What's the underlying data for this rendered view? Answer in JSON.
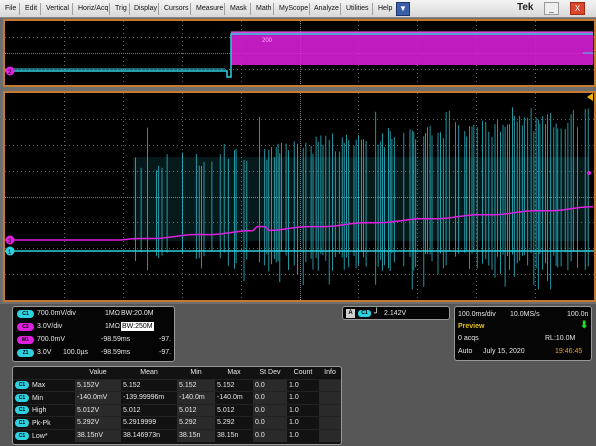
{
  "menu": {
    "items": [
      "File",
      "Edit",
      "Vertical",
      "Horiz/Acq",
      "Trig",
      "Display",
      "Cursors",
      "Measure",
      "Mask",
      "Math",
      "MyScope",
      "Analyze",
      "Utilities",
      "Help"
    ],
    "brand": "Tek",
    "window_buttons": {
      "minimize": "_",
      "close": "X"
    }
  },
  "icons": {
    "dropdown": "chevron-down-icon",
    "trigger_slope": "rising-edge-icon",
    "arrow": "down-arrow-icon"
  },
  "colors": {
    "ch1": "#2fd0e0",
    "ch3": "#e020e0",
    "math1": "#e020e0",
    "ch4": "#2fd0e0",
    "trigger": "#f4b400",
    "grid": "#7a7a7a",
    "preview": "#e0c020",
    "time": "#f0a030",
    "acq_arrow": "#20e020"
  },
  "channels": [
    {
      "badge": "C1",
      "color": "#2fd0e0",
      "scale": "700.0mV/div",
      "impedance": "1MΩ",
      "bw": "BW:20.0M",
      "extra": ""
    },
    {
      "badge": "C3",
      "color": "#e020e0",
      "scale": "3.0V/div",
      "impedance": "1MΩ",
      "bw": "BW:250M",
      "extra": ""
    },
    {
      "badge": "M1",
      "color": "#e020e0",
      "scale": "700.0mV",
      "impedance": "-98.59ms",
      "bw": "",
      "extra": "-97."
    },
    {
      "badge": "Z1",
      "color": "#2fd0e0",
      "scale": "3.0V",
      "impedance": "100.0µs",
      "bw": "",
      "extra": "-98.59ms",
      "extra2": "-97."
    }
  ],
  "trigger": {
    "source_letter": "A",
    "badge": "C1",
    "slope": "╯",
    "level": "2.142V"
  },
  "horizontal": {
    "scale": "100.0ms/div",
    "sample_rate": "10.0MS/s",
    "resolution": "100.0n",
    "state": "Preview",
    "acqs": "0 acqs",
    "record_length": "RL:10.0M",
    "mode": "Auto",
    "date": "July 15, 2020",
    "time": "19:46:45"
  },
  "measurements": {
    "headers": [
      "Value",
      "Mean",
      "Min",
      "Max",
      "St Dev",
      "Count",
      "Info"
    ],
    "rows": [
      {
        "badge": "C1",
        "name": "Max",
        "value": "5.152V",
        "mean": "5.152",
        "min": "5.152",
        "max": "5.152",
        "stdev": "0.0",
        "count": "1.0",
        "info": ""
      },
      {
        "badge": "C1",
        "name": "Min",
        "value": "-140.0mV",
        "mean": "-139.99996m",
        "min": "-140.0m",
        "max": "-140.0m",
        "stdev": "0.0",
        "count": "1.0",
        "info": ""
      },
      {
        "badge": "C1",
        "name": "High",
        "value": "5.012V",
        "mean": "5.012",
        "min": "5.012",
        "max": "5.012",
        "stdev": "0.0",
        "count": "1.0",
        "info": ""
      },
      {
        "badge": "C1",
        "name": "Pk-Pk",
        "value": "5.292V",
        "mean": "5.2919999",
        "min": "5.292",
        "max": "5.292",
        "stdev": "0.0",
        "count": "1.0",
        "info": ""
      },
      {
        "badge": "C1",
        "name": "Low*",
        "value": "38.15nV",
        "mean": "38.146973n",
        "min": "38.15n",
        "max": "38.15n",
        "stdev": "0.0",
        "count": "1.0",
        "info": ""
      }
    ]
  },
  "top_pane": {
    "label": "200",
    "marker": "2"
  },
  "main_pane": {
    "ch1_marker": "1",
    "ch3_marker": "3",
    "ch4_marker": "4"
  }
}
